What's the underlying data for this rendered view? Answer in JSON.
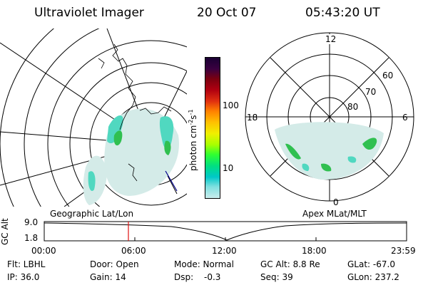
{
  "header": {
    "title": "Ultraviolet Imager",
    "date": "20 Oct 07",
    "time": "05:43:20 UT"
  },
  "colorbar": {
    "unit": "photon cm",
    "unit_sup1": "-2",
    "unit_mid": "s",
    "unit_sup2": "-1",
    "tick_100": "100",
    "tick_10": "10",
    "colors": [
      "#1a0033",
      "#3a0040",
      "#7a0010",
      "#b00010",
      "#e03010",
      "#ff8000",
      "#ffc000",
      "#f0f000",
      "#a8ff00",
      "#30ff30",
      "#00e080",
      "#00c8c8",
      "#80e0e0",
      "#c8ecec"
    ]
  },
  "left_map": {
    "label": "Geographic Lat/Lon",
    "aurora_colors": {
      "bright": "#2ac84a",
      "mid": "#40d8c0",
      "faint": "#c8e8e4"
    }
  },
  "right_map": {
    "label": "Apex MLat/MLT",
    "mlt_12": "12",
    "mlt_18": "18",
    "mlt_6": "6",
    "mlt_0": "0",
    "lat_60": "60",
    "lat_70": "70",
    "lat_80": "80"
  },
  "timeline": {
    "axis_label": "GC Alt",
    "y_top": "9.0",
    "y_bottom": "1.8",
    "ticks": [
      "00:00",
      "06:00",
      "12:00",
      "18:00",
      "23:59"
    ],
    "marker_color": "#e01010"
  },
  "info": {
    "filter": "Flt: LBHL",
    "ip": "IP: 36.0",
    "door": "Door: Open",
    "gain": "Gain: 14",
    "mode": "Mode: Normal",
    "dsp_label": "Dsp:",
    "dsp_value": "-0.3",
    "gc_alt": "GC Alt: 8.8 Re",
    "seq": "Seq: 39",
    "glat": "GLat: -67.0",
    "glon": "GLon: 237.2"
  }
}
